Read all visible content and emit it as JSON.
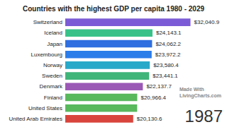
{
  "chart_data": {
    "type": "bar",
    "orientation": "horizontal",
    "title": "Countries with the highest GDP per capita 1980 - 2029",
    "categories": [
      "Switzerland",
      "Iceland",
      "Japan",
      "Luxembourg",
      "Norway",
      "Sweden",
      "Denmark",
      "Finland",
      "United States",
      "United Arab Emirates"
    ],
    "values": [
      32040.9,
      24143.1,
      24062.2,
      23972.2,
      23580.4,
      23441.1,
      22137.7,
      20966.4,
      20950,
      20130.6
    ],
    "value_labels": [
      "$32,040.9",
      "$24,143.1",
      "$24,062.2",
      "$23,972.2",
      "$23,580.4",
      "$23,441.1",
      "$22,137.7",
      "$20,966.4",
      null,
      "$20,130.6"
    ],
    "colors": [
      "#7c5cd6",
      "#38c28a",
      "#2f6fe0",
      "#2b7de9",
      "#29a9c9",
      "#3fb57a",
      "#9b59b6",
      "#58b85c",
      "#58b85c",
      "#d9453c"
    ],
    "xlim": [
      6000,
      33000
    ],
    "data_labels": true,
    "tick_labels": "y",
    "grid": false,
    "annotations": [
      "1987",
      "Made With",
      "LivingCharts.com"
    ]
  }
}
